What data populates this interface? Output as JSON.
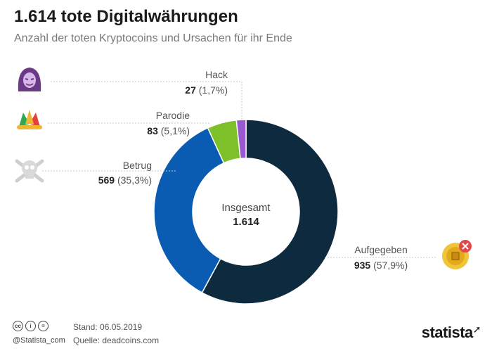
{
  "header": {
    "title": "1.614 tote Digitalwährungen",
    "subtitle": "Anzahl der toten Kryptocoins und Ursachen für ihr Ende"
  },
  "center": {
    "label": "Insgesamt",
    "value": "1.614"
  },
  "chart_data": {
    "type": "pie",
    "title": "1.614 tote Digitalwährungen",
    "subtitle": "Anzahl der toten Kryptocoins und Ursachen für ihr Ende",
    "donut": true,
    "total": 1614,
    "categories": [
      "Aufgegeben",
      "Betrug",
      "Parodie",
      "Hack"
    ],
    "values": [
      935,
      569,
      83,
      27
    ],
    "value_labels": [
      "935",
      "569",
      "83",
      "27"
    ],
    "percent_labels": [
      "(57,9%)",
      "(35,3%)",
      "(5,1%)",
      "(1,7%)"
    ],
    "colors": [
      "#0e2a3f",
      "#0a5cb2",
      "#7dc02a",
      "#9b59d0"
    ],
    "icons": [
      "coin-chip-x-icon",
      "skull-crossbones-icon",
      "jester-hat-icon",
      "hooded-hacker-icon"
    ]
  },
  "footer": {
    "license_icons": [
      "cc",
      "i",
      "="
    ],
    "handle": "@Statista_com",
    "stand": "Stand: 06.05.2019",
    "quelle": "Quelle: deadcoins.com",
    "brand": "statista"
  }
}
